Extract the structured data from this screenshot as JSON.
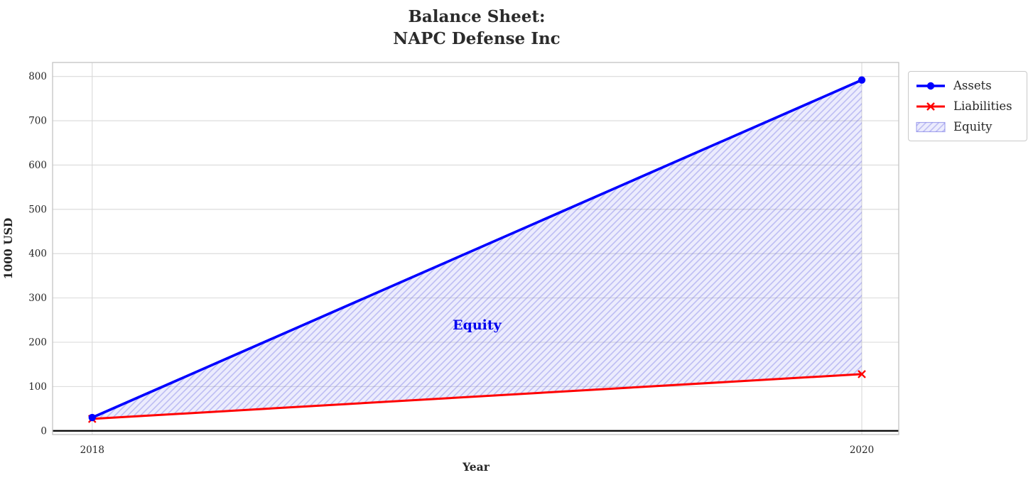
{
  "title": {
    "line1": "Balance Sheet:",
    "line2": "NAPC Defense Inc"
  },
  "chart_data": {
    "type": "line",
    "x": [
      2018,
      2020
    ],
    "series": [
      {
        "name": "Assets",
        "values": [
          30,
          792
        ],
        "color": "#0000ff",
        "marker": "circle",
        "linewidth": 3.6
      },
      {
        "name": "Liabilities",
        "values": [
          27,
          128
        ],
        "color": "#ff0000",
        "marker": "x",
        "linewidth": 3.0
      }
    ],
    "fill_between": {
      "name": "Equity",
      "between": [
        "Assets",
        "Liabilities"
      ],
      "hatch": "/",
      "base_color": "#e9e9fb",
      "hatch_color": "#c5c5f0"
    },
    "annotation": {
      "text": "Equity",
      "x": 2019,
      "y": 240,
      "color": "#0000ee"
    },
    "xlabel": "Year",
    "ylabel": "1000 USD",
    "xticks": [
      2018,
      2020
    ],
    "yticks": [
      0,
      100,
      200,
      300,
      400,
      500,
      600,
      700,
      800
    ],
    "xlim": [
      2017.897,
      2020.096
    ],
    "ylim": [
      -8.4,
      831.6
    ],
    "grid": true,
    "grid_color": "#d9d9d9",
    "spine_color": "#c4c4c4",
    "baseline": {
      "y": 0,
      "color": "#000000"
    },
    "legend_position": "outside upper right"
  },
  "legend": {
    "entries": [
      "Assets",
      "Liabilities",
      "Equity"
    ]
  }
}
